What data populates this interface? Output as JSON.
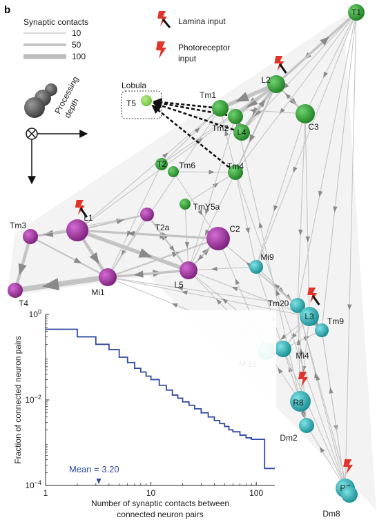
{
  "panel_label": "b",
  "legend": {
    "title": "Synaptic contacts",
    "entries": [
      {
        "label": "10",
        "stroke": 1.5
      },
      {
        "label": "50",
        "stroke": 4
      },
      {
        "label": "100",
        "stroke": 7
      }
    ],
    "lamina_input": "Lamina input",
    "photoreceptor_input_1": "Photoreceptor",
    "photoreceptor_input_2": "input",
    "processing_depth_1": "Processing",
    "processing_depth_2": "depth",
    "lobula": "Lobula"
  },
  "colors": {
    "green": "#3aa13a",
    "magenta": "#9c2b9c",
    "cyan": "#2fb3b8",
    "edge": "#c9c9c9",
    "bolt": "#e0342a",
    "curve": "#2f4aa0"
  },
  "neurons": [
    {
      "id": "T1",
      "label": "T1",
      "color": "green",
      "r": 12
    },
    {
      "id": "L2",
      "label": "L2",
      "color": "green",
      "r": 13,
      "input": "lamina"
    },
    {
      "id": "Tm1",
      "label": "Tm1",
      "color": "green",
      "r": 12
    },
    {
      "id": "Tm2",
      "label": "Tm2",
      "color": "green",
      "r": 11
    },
    {
      "id": "L4",
      "label": "L4",
      "color": "green",
      "r": 12
    },
    {
      "id": "C3",
      "label": "C3",
      "color": "green",
      "r": 14
    },
    {
      "id": "T5",
      "label": "T5",
      "color": "lightgreen",
      "r": 8
    },
    {
      "id": "T2",
      "label": "T2",
      "color": "green",
      "r": 9
    },
    {
      "id": "Tm6",
      "label": "Tm6",
      "color": "green",
      "r": 8
    },
    {
      "id": "Tm4",
      "label": "Tm4",
      "color": "green",
      "r": 11
    },
    {
      "id": "TmY5a",
      "label": "TmY5a",
      "color": "green",
      "r": 8
    },
    {
      "id": "Tm3",
      "label": "Tm3",
      "color": "magenta",
      "r": 11
    },
    {
      "id": "L1",
      "label": "L1",
      "color": "magenta",
      "r": 16,
      "input": "lamina"
    },
    {
      "id": "T2a",
      "label": "T2a",
      "color": "magenta",
      "r": 10
    },
    {
      "id": "C2",
      "label": "C2",
      "color": "magenta",
      "r": 17
    },
    {
      "id": "L5",
      "label": "L5",
      "color": "magenta",
      "r": 13
    },
    {
      "id": "Mi1",
      "label": "Mi1",
      "color": "magenta",
      "r": 13
    },
    {
      "id": "T4",
      "label": "T4",
      "color": "magenta",
      "r": 11
    },
    {
      "id": "Mi9",
      "label": "Mi9",
      "color": "cyan",
      "r": 10
    },
    {
      "id": "Tm20",
      "label": "Tm20",
      "color": "cyan",
      "r": 11
    },
    {
      "id": "L3",
      "label": "L3",
      "color": "cyan",
      "r": 14,
      "input": "lamina"
    },
    {
      "id": "Tm9",
      "label": "Tm9",
      "color": "cyan",
      "r": 10
    },
    {
      "id": "Mi15",
      "label": "Mi15",
      "color": "cyan",
      "r": 13
    },
    {
      "id": "Mi4",
      "label": "Mi4",
      "color": "cyan",
      "r": 12
    },
    {
      "id": "R8",
      "label": "R8",
      "color": "cyan",
      "r": 15,
      "input": "photoreceptor"
    },
    {
      "id": "Dm2",
      "label": "Dm2",
      "color": "cyan",
      "r": 11
    },
    {
      "id": "R7",
      "label": "R7",
      "color": "cyan",
      "r": 14,
      "input": "photoreceptor"
    },
    {
      "id": "Dm8",
      "label": "Dm8",
      "color": "cyan",
      "r": 12
    }
  ],
  "edges": [
    {
      "from": "T1",
      "to": "L2",
      "w": 2
    },
    {
      "from": "T1",
      "to": "C3",
      "w": 1
    },
    {
      "from": "T1",
      "to": "Tm4",
      "w": 1
    },
    {
      "from": "T1",
      "to": "L4",
      "w": 1
    },
    {
      "from": "T1",
      "to": "Mi9",
      "w": 1
    },
    {
      "from": "L2",
      "to": "Tm1",
      "w": 5
    },
    {
      "from": "L2",
      "to": "Tm2",
      "w": 4
    },
    {
      "from": "L2",
      "to": "L4",
      "w": 4
    },
    {
      "from": "L2",
      "to": "C3",
      "w": 2
    },
    {
      "from": "L2",
      "to": "Tm4",
      "w": 2
    },
    {
      "from": "L2",
      "to": "T1",
      "w": 3
    },
    {
      "from": "L4",
      "to": "Tm2",
      "w": 3
    },
    {
      "from": "L4",
      "to": "L2",
      "w": 2
    },
    {
      "from": "C3",
      "to": "L2",
      "w": 1
    },
    {
      "from": "C3",
      "to": "Tm1",
      "w": 1
    },
    {
      "from": "C3",
      "to": "Mi9",
      "w": 1
    },
    {
      "from": "C3",
      "to": "Tm20",
      "w": 1
    },
    {
      "from": "C3",
      "to": "L3",
      "w": 1
    },
    {
      "from": "L1",
      "to": "Tm3",
      "w": 3
    },
    {
      "from": "L1",
      "to": "Mi1",
      "w": 4
    },
    {
      "from": "L1",
      "to": "L5",
      "w": 5
    },
    {
      "from": "L1",
      "to": "C2",
      "w": 3
    },
    {
      "from": "L1",
      "to": "T2a",
      "w": 2
    },
    {
      "from": "L1",
      "to": "Tm1",
      "w": 1
    },
    {
      "from": "L1",
      "to": "L2",
      "w": 1
    },
    {
      "from": "Mi1",
      "to": "T4",
      "w": 7
    },
    {
      "from": "Mi1",
      "to": "L5",
      "w": 3
    },
    {
      "from": "Mi1",
      "to": "C2",
      "w": 2
    },
    {
      "from": "Tm3",
      "to": "T4",
      "w": 4
    },
    {
      "from": "Tm3",
      "to": "Mi1",
      "w": 2
    },
    {
      "from": "L5",
      "to": "Mi1",
      "w": 3
    },
    {
      "from": "L5",
      "to": "C2",
      "w": 2
    },
    {
      "from": "L5",
      "to": "T2a",
      "w": 2
    },
    {
      "from": "C2",
      "to": "L1",
      "w": 2
    },
    {
      "from": "C2",
      "to": "L5",
      "w": 1
    },
    {
      "from": "T2a",
      "to": "Mi1",
      "w": 1
    },
    {
      "from": "T2a",
      "to": "L5",
      "w": 1
    },
    {
      "from": "T2a",
      "to": "Tm3",
      "w": 1
    },
    {
      "from": "T2",
      "to": "Tm1",
      "w": 1
    },
    {
      "from": "Tm6",
      "to": "Tm4",
      "w": 1
    },
    {
      "from": "TmY5a",
      "to": "Tm4",
      "w": 1
    },
    {
      "from": "Tm4",
      "to": "Mi9",
      "w": 1
    },
    {
      "from": "Tm4",
      "to": "L5",
      "w": 1
    },
    {
      "from": "Tm4",
      "to": "Tm1",
      "w": 1
    },
    {
      "from": "Mi9",
      "to": "Tm20",
      "w": 1
    },
    {
      "from": "Mi9",
      "to": "L3",
      "w": 1
    },
    {
      "from": "Mi9",
      "to": "L5",
      "w": 1
    },
    {
      "from": "L3",
      "to": "Tm20",
      "w": 2
    },
    {
      "from": "L3",
      "to": "Tm9",
      "w": 2
    },
    {
      "from": "L3",
      "to": "Mi15",
      "w": 1
    },
    {
      "from": "L3",
      "to": "Mi4",
      "w": 1
    },
    {
      "from": "L3",
      "to": "R8",
      "w": 1
    },
    {
      "from": "L3",
      "to": "Mi1",
      "w": 1
    },
    {
      "from": "L3",
      "to": "C2",
      "w": 1
    },
    {
      "from": "L3",
      "to": "Mi9",
      "w": 1
    },
    {
      "from": "L3",
      "to": "L5",
      "w": 1
    },
    {
      "from": "Tm20",
      "to": "Mi1",
      "w": 1
    },
    {
      "from": "Tm20",
      "to": "C2",
      "w": 1
    },
    {
      "from": "Tm9",
      "to": "Tm20",
      "w": 1
    },
    {
      "from": "Tm9",
      "to": "R7",
      "w": 1
    },
    {
      "from": "Mi15",
      "to": "Mi4",
      "w": 1
    },
    {
      "from": "Mi15",
      "to": "C2",
      "w": 1
    },
    {
      "from": "Mi15",
      "to": "L5",
      "w": 1
    },
    {
      "from": "Mi4",
      "to": "L5",
      "w": 1
    },
    {
      "from": "Mi4",
      "to": "Mi1",
      "w": 1
    },
    {
      "from": "Mi4",
      "to": "Tm9",
      "w": 1
    },
    {
      "from": "R8",
      "to": "Mi15",
      "w": 1
    },
    {
      "from": "R8",
      "to": "Mi4",
      "w": 1
    },
    {
      "from": "R8",
      "to": "Dm2",
      "w": 1
    },
    {
      "from": "R8",
      "to": "Tm20",
      "w": 1
    },
    {
      "from": "R8",
      "to": "Mi9",
      "w": 1
    },
    {
      "from": "R8",
      "to": "Tm2",
      "w": 1
    },
    {
      "from": "R7",
      "to": "Dm8",
      "w": 2
    },
    {
      "from": "R7",
      "to": "Dm2",
      "w": 1
    },
    {
      "from": "R7",
      "to": "Tm9",
      "w": 1
    },
    {
      "from": "R7",
      "to": "Tm20",
      "w": 1
    },
    {
      "from": "R7",
      "to": "Tm4",
      "w": 1
    },
    {
      "from": "R7",
      "to": "Mi4",
      "w": 1
    },
    {
      "from": "Dm2",
      "to": "R8",
      "w": 1
    },
    {
      "from": "Dm2",
      "to": "Tm20",
      "w": 1
    },
    {
      "from": "Dm8",
      "to": "R7",
      "w": 1
    },
    {
      "from": "Dm8",
      "to": "Tm20",
      "w": 1
    },
    {
      "from": "T1",
      "to": "Tm9",
      "w": 1
    },
    {
      "from": "T1",
      "to": "R7",
      "w": 1
    },
    {
      "from": "T1",
      "to": "Tm20",
      "w": 1
    },
    {
      "from": "T2",
      "to": "L2",
      "w": 1
    },
    {
      "from": "T2",
      "to": "Mi1",
      "w": 1
    },
    {
      "from": "Tm6",
      "to": "C2",
      "w": 1
    },
    {
      "from": "TmY5a",
      "to": "L5",
      "w": 1
    },
    {
      "from": "Tm1",
      "to": "Mi1",
      "w": 1
    },
    {
      "from": "Tm2",
      "to": "L5",
      "w": 1
    }
  ],
  "lobula_edges": [
    "Tm1",
    "Tm2",
    "L4",
    "Tm4"
  ],
  "chart_data": {
    "type": "line",
    "xlabel_line1": "Number of synaptic contacts between",
    "xlabel_line2": "connected neuron pairs",
    "ylabel": "Fraction of connected neuron pairs",
    "xscale": "log",
    "yscale": "log",
    "xlim": [
      1,
      150
    ],
    "ylim": [
      0.0001,
      1
    ],
    "xticks": [
      {
        "v": 1,
        "label": "1"
      },
      {
        "v": 10,
        "label": "10"
      },
      {
        "v": 100,
        "label": "100"
      }
    ],
    "yticks": [
      {
        "v": 1,
        "label": "10^0",
        "base": "10",
        "exp": "0"
      },
      {
        "v": 0.01,
        "label": "10^-2",
        "base": "10",
        "exp": "−2"
      },
      {
        "v": 0.0001,
        "label": "10^-4",
        "base": "10",
        "exp": "−4"
      }
    ],
    "mean_label": "Mean = 3.20",
    "mean_value": 3.2,
    "x": [
      1,
      2,
      3,
      4,
      5,
      6,
      7,
      8,
      9,
      10,
      12,
      14,
      16,
      18,
      20,
      23,
      26,
      30,
      35,
      40,
      45,
      50,
      55,
      60,
      70,
      80,
      90,
      100,
      110,
      115,
      120,
      150
    ],
    "y": [
      0.45,
      0.3,
      0.2,
      0.15,
      0.1,
      0.075,
      0.055,
      0.045,
      0.036,
      0.03,
      0.022,
      0.017,
      0.013,
      0.011,
      0.009,
      0.0075,
      0.0062,
      0.005,
      0.004,
      0.0033,
      0.0028,
      0.0024,
      0.002,
      0.0018,
      0.0015,
      0.0013,
      0.0012,
      0.0012,
      0.0012,
      0.0012,
      0.00025,
      0.00025
    ]
  }
}
